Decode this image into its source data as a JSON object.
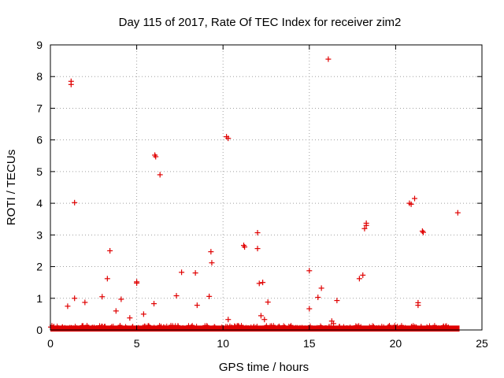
{
  "chart_data": {
    "type": "scatter",
    "title": "Day 115 of 2017, Rate Of TEC Index for receiver zim2",
    "xlabel": "GPS time / hours",
    "ylabel": "ROTI / TECUs",
    "xlim": [
      0,
      25
    ],
    "ylim": [
      0,
      9
    ],
    "x_ticks": [
      0,
      5,
      10,
      15,
      20,
      25
    ],
    "y_ticks": [
      0,
      1,
      2,
      3,
      4,
      5,
      6,
      7,
      8,
      9
    ],
    "grid": true,
    "legend": "none",
    "marker": "plus",
    "colors": {
      "series": "#e00000",
      "grid": "#a0a0a0",
      "axis": "#000000"
    },
    "baseline_band": {
      "x_range": [
        0,
        23.7
      ],
      "y_typical": 0.04,
      "y_max": 0.15
    },
    "points": [
      [
        1.0,
        0.75
      ],
      [
        1.2,
        7.85
      ],
      [
        1.2,
        7.75
      ],
      [
        1.4,
        4.02
      ],
      [
        1.4,
        1.0
      ],
      [
        2.0,
        0.87
      ],
      [
        3.0,
        1.05
      ],
      [
        3.3,
        1.62
      ],
      [
        3.45,
        2.5
      ],
      [
        3.55,
        0.1
      ],
      [
        3.8,
        0.6
      ],
      [
        4.1,
        0.97
      ],
      [
        4.6,
        0.38
      ],
      [
        5.0,
        1.52
      ],
      [
        5.0,
        1.48
      ],
      [
        5.4,
        0.5
      ],
      [
        6.0,
        0.83
      ],
      [
        6.05,
        5.52
      ],
      [
        6.1,
        5.47
      ],
      [
        6.35,
        4.9
      ],
      [
        7.3,
        1.08
      ],
      [
        7.6,
        1.82
      ],
      [
        8.4,
        1.8
      ],
      [
        8.5,
        0.78
      ],
      [
        9.2,
        1.06
      ],
      [
        9.3,
        2.47
      ],
      [
        9.35,
        2.12
      ],
      [
        9.5,
        0.1
      ],
      [
        10.2,
        6.1
      ],
      [
        10.3,
        6.05
      ],
      [
        10.3,
        0.33
      ],
      [
        11.2,
        2.67
      ],
      [
        11.25,
        2.62
      ],
      [
        12.0,
        3.07
      ],
      [
        12.0,
        2.57
      ],
      [
        12.1,
        1.47
      ],
      [
        12.2,
        0.45
      ],
      [
        12.3,
        1.5
      ],
      [
        12.4,
        0.33
      ],
      [
        12.6,
        0.88
      ],
      [
        15.0,
        1.87
      ],
      [
        15.0,
        0.67
      ],
      [
        15.5,
        1.03
      ],
      [
        15.7,
        1.32
      ],
      [
        16.1,
        8.55
      ],
      [
        16.3,
        0.28
      ],
      [
        16.4,
        0.2
      ],
      [
        16.6,
        0.93
      ],
      [
        17.9,
        1.62
      ],
      [
        18.1,
        1.73
      ],
      [
        18.3,
        3.37
      ],
      [
        18.3,
        3.3
      ],
      [
        18.2,
        3.2
      ],
      [
        20.8,
        4.0
      ],
      [
        20.9,
        3.97
      ],
      [
        21.1,
        4.15
      ],
      [
        21.3,
        0.86
      ],
      [
        21.3,
        0.78
      ],
      [
        21.55,
        3.12
      ],
      [
        21.6,
        3.08
      ],
      [
        23.6,
        3.7
      ]
    ]
  }
}
